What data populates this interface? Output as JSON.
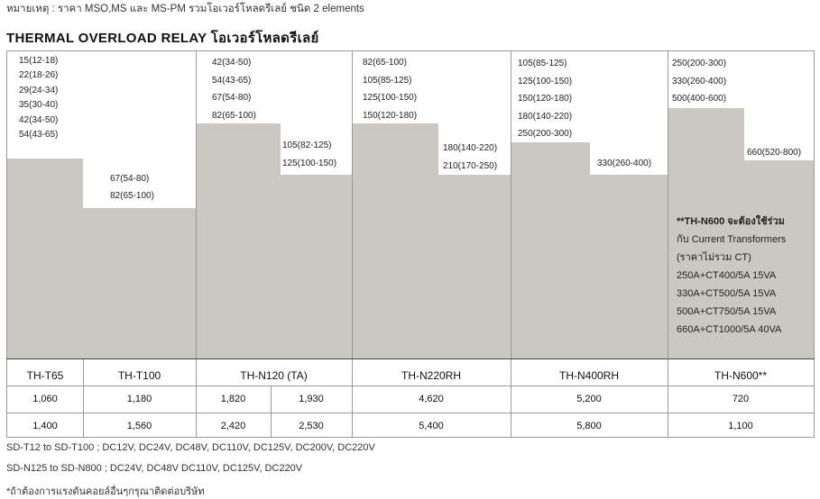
{
  "note": "หมายเหตุ : ราคา MSO,MS และ MS-PM รวมโอเวอร์โหลดรีเลย์ ชนิด 2 elements",
  "title": "THERMAL OVERLOAD RELAY โอเวอร์โหลดรีเลย์",
  "ranges": {
    "t65": [
      "15(12-18)",
      "22(18-26)",
      "29(24-34)",
      "35(30-40)",
      "42(34-50)",
      "54(43-65)"
    ],
    "t100": [
      "67(54-80)",
      "82(65-100)"
    ],
    "n120_left": [
      "42(34-50)",
      "54(43-65)",
      "67(54-80)",
      "82(65-100)"
    ],
    "n120_right": [
      "105(82-125)",
      "125(100-150)"
    ],
    "n220_left": [
      "82(65-100)",
      "105(85-125)",
      "125(100-150)",
      "150(120-180)"
    ],
    "n220_right": [
      "180(140-220)",
      "210(170-250)"
    ],
    "n400_left": [
      "105(85-125)",
      "125(100-150)",
      "150(120-180)",
      "180(140-220)",
      "250(200-300)"
    ],
    "n400_right": [
      "330(260-400)"
    ],
    "n600_left": [
      "250(200-300)",
      "330(260-400)",
      "500(400-600)"
    ],
    "n600_right": [
      "660(520-800)"
    ]
  },
  "ct_note": [
    "**TH-N600 จะต้องใช้ร่วม",
    "กับ Current Transformers",
    "(ราคาไม่รวม CT)",
    "250A+CT400/5A  15VA",
    "330A+CT500/5A  15VA",
    "500A+CT750/5A  15VA",
    "660A+CT1000/5A  40VA"
  ],
  "models": {
    "t65": "TH-T65",
    "t100": "TH-T100",
    "n120": "TH-N120 (TA)",
    "n220": "TH-N220RH",
    "n400": "TH-N400RH",
    "n600": "TH-N600**"
  },
  "prices_row1": {
    "t65": "1,060",
    "t100": "1,180",
    "n120a": "1,820",
    "n120b": "1,930",
    "n220": "4,620",
    "n400": "5,200",
    "n600": "720"
  },
  "prices_row2": {
    "t65": "1,400",
    "t100": "1,560",
    "n120a": "2,420",
    "n120b": "2,530",
    "n220": "5,400",
    "n400": "5,800",
    "n600": "1,100"
  },
  "footer": [
    "SD-T12 to SD-T100 ; DC12V, DC24V, DC48V, DC110V, DC125V, DC200V, DC220V",
    "SD-N125 to SD-N800 ; DC24V, DC48V DC110V, DC125V, DC220V",
    "*ถ้าต้องการแรงดันคอยล์อื่นๆกรุณาติดต่อบริษัท"
  ]
}
